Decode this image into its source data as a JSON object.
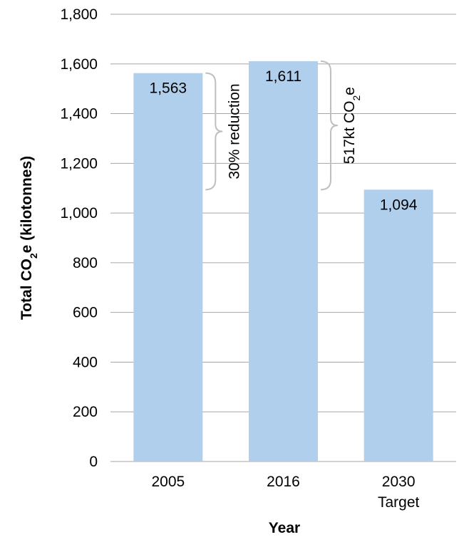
{
  "chart_data": {
    "type": "bar",
    "categories": [
      [
        "2005"
      ],
      [
        "2016"
      ],
      [
        "2030",
        "Target"
      ]
    ],
    "values": [
      1563,
      1611,
      1094
    ],
    "data_labels": [
      "1,563",
      "1,611",
      "1,094"
    ],
    "ylim": [
      0,
      1800
    ],
    "yticks": [
      0,
      200,
      400,
      600,
      800,
      1000,
      1200,
      1400,
      1600,
      1800
    ],
    "ytick_labels": [
      "0",
      "200",
      "400",
      "600",
      "800",
      "1,000",
      "1,200",
      "1,400",
      "1,600",
      "1,800"
    ],
    "xlabel": "Year",
    "ylabel": {
      "prefix": "Total CO",
      "sub": "2",
      "suffix": "e (kilotonnes)"
    },
    "grid": "horizontal",
    "legend": "none",
    "colors": {
      "bar": "#b0cfec",
      "grid": "#a6a6a6",
      "brace": "#bfbfbf"
    },
    "annotations": [
      {
        "text": "30% reduction",
        "from_value": 1563,
        "to_value": 1094,
        "beside": "2005"
      },
      {
        "prefix": "517kt CO",
        "sub": "2",
        "suffix": "e",
        "from_value": 1611,
        "to_value": 1094,
        "beside": "2016"
      }
    ]
  }
}
